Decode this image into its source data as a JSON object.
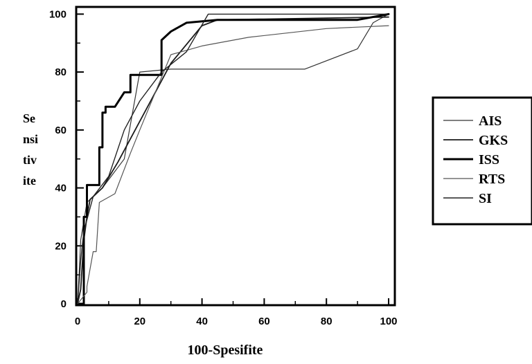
{
  "chart_data": {
    "type": "line",
    "title": "",
    "xlabel": "100-Spesifite",
    "ylabel_lines": [
      "Se",
      "nsi",
      "tiv",
      "ite"
    ],
    "xlim": [
      0,
      102
    ],
    "ylim": [
      0,
      102
    ],
    "x_ticks": [
      0,
      20,
      40,
      60,
      80,
      100
    ],
    "y_ticks": [
      0,
      20,
      40,
      60,
      80,
      100
    ],
    "x_tick_labels": [
      "0",
      "20",
      "40",
      "60",
      "80",
      "100"
    ],
    "y_tick_labels": [
      "0",
      "20",
      "40",
      "60",
      "80",
      "100"
    ],
    "grid": false,
    "legend_position": "right",
    "series": [
      {
        "name": "AIS",
        "stroke_width": 1.2,
        "color": "#333333",
        "points": [
          [
            0,
            0
          ],
          [
            0.5,
            10
          ],
          [
            1,
            22
          ],
          [
            3,
            35
          ],
          [
            8,
            40
          ],
          [
            15,
            50
          ],
          [
            20,
            80
          ],
          [
            30,
            81
          ],
          [
            40,
            81
          ],
          [
            60,
            81
          ],
          [
            73,
            81
          ],
          [
            90,
            88
          ],
          [
            95,
            97
          ],
          [
            100,
            100
          ]
        ]
      },
      {
        "name": "GKS",
        "stroke_width": 1.8,
        "color": "#1a1a1a",
        "points": [
          [
            0,
            0
          ],
          [
            1,
            5
          ],
          [
            2,
            22
          ],
          [
            3,
            30
          ],
          [
            4,
            36
          ],
          [
            8,
            40
          ],
          [
            13,
            49
          ],
          [
            20,
            63
          ],
          [
            30,
            83
          ],
          [
            40,
            96
          ],
          [
            45,
            98
          ],
          [
            100,
            99
          ]
        ]
      },
      {
        "name": "ISS",
        "stroke_width": 3.0,
        "color": "#000000",
        "points": [
          [
            0,
            0
          ],
          [
            2,
            0
          ],
          [
            2,
            30
          ],
          [
            3,
            30
          ],
          [
            3,
            41
          ],
          [
            7,
            41
          ],
          [
            7,
            54
          ],
          [
            8,
            54
          ],
          [
            8,
            66
          ],
          [
            9,
            66
          ],
          [
            9,
            68
          ],
          [
            12,
            68
          ],
          [
            15,
            73
          ],
          [
            17,
            73
          ],
          [
            17,
            79
          ],
          [
            27,
            79
          ],
          [
            27,
            91
          ],
          [
            30,
            94
          ],
          [
            35,
            97
          ],
          [
            45,
            98
          ],
          [
            90,
            98
          ],
          [
            100,
            100
          ]
        ]
      },
      {
        "name": "RTS",
        "stroke_width": 1.2,
        "color": "#555555",
        "points": [
          [
            0,
            0
          ],
          [
            3,
            4
          ],
          [
            3,
            6
          ],
          [
            5,
            18
          ],
          [
            6,
            18
          ],
          [
            7,
            35
          ],
          [
            12,
            38
          ],
          [
            17,
            52
          ],
          [
            20,
            60
          ],
          [
            30,
            86
          ],
          [
            40,
            89
          ],
          [
            55,
            92
          ],
          [
            80,
            95
          ],
          [
            100,
            96
          ]
        ]
      },
      {
        "name": "SI",
        "stroke_width": 1.4,
        "color": "#222222",
        "points": [
          [
            0,
            0
          ],
          [
            1,
            15
          ],
          [
            2,
            25
          ],
          [
            5,
            37
          ],
          [
            10,
            44
          ],
          [
            15,
            60
          ],
          [
            20,
            70
          ],
          [
            27,
            80
          ],
          [
            35,
            87
          ],
          [
            42,
            100
          ],
          [
            100,
            100
          ]
        ]
      }
    ]
  }
}
